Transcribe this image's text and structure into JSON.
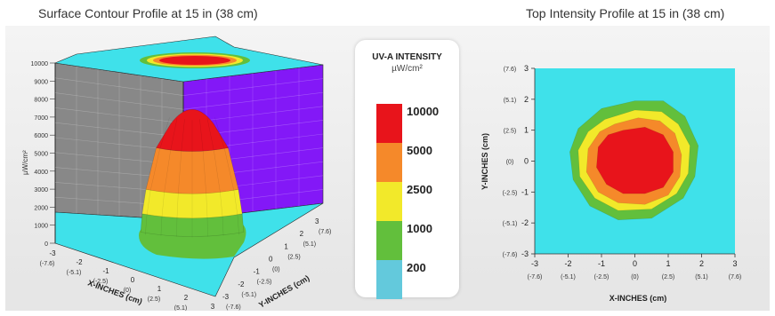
{
  "titles": {
    "surface": "Surface Contour Profile at 15 in (38 cm)",
    "top": "Top Intensity Profile at 15 in (38 cm)"
  },
  "legend": {
    "title": "UV-A INTENSITY",
    "unit": "µW/cm²",
    "levels": [
      {
        "label": "10000",
        "color": "#e8141b"
      },
      {
        "label": "5000",
        "color": "#f5892a"
      },
      {
        "label": "2500",
        "color": "#f2e92a"
      },
      {
        "label": "1000",
        "color": "#62bf3c"
      },
      {
        "label": "200",
        "color": "#63c9dc"
      }
    ]
  },
  "colors": {
    "background": "#3fe1ea",
    "wall_left": "#888888",
    "wall_right": "#8318f7",
    "level_10000": "#e8141b",
    "level_5000": "#f5892a",
    "level_2500": "#f2e92a",
    "level_1000": "#62bf3c"
  },
  "chart_data": [
    {
      "type": "surface",
      "title": "Surface Contour Profile at 15 in (38 cm)",
      "xlabel": "X-INCHES (cm)",
      "ylabel": "Y-INCHES (cm)",
      "zlabel": "µW/cm²",
      "z_ticks": [
        "0",
        "1000",
        "2000",
        "3000",
        "4000",
        "5000",
        "6000",
        "7000",
        "8000",
        "9000",
        "10000"
      ],
      "x_ticks": [
        {
          "in": "-3",
          "cm": "(-7.6)"
        },
        {
          "in": "-2",
          "cm": "(-5.1)"
        },
        {
          "in": "-1",
          "cm": "(-2.5)"
        },
        {
          "in": "0",
          "cm": "(0)"
        },
        {
          "in": "1",
          "cm": "(2.5)"
        },
        {
          "in": "2",
          "cm": "(5.1)"
        },
        {
          "in": "3",
          "cm": "(7.6)"
        }
      ],
      "y_ticks": [
        {
          "in": "-3",
          "cm": "(-7.6)"
        },
        {
          "in": "-2",
          "cm": "(-5.1)"
        },
        {
          "in": "-1",
          "cm": "(-2.5)"
        },
        {
          "in": "0",
          "cm": "(0)"
        },
        {
          "in": "1",
          "cm": "(2.5)"
        },
        {
          "in": "2",
          "cm": "(5.1)"
        },
        {
          "in": "3",
          "cm": "(7.6)"
        }
      ],
      "zlim": [
        0,
        10000
      ],
      "bands": [
        {
          "level": 10000,
          "z_base": 7300
        },
        {
          "level": 5000,
          "z_base": 3900
        },
        {
          "level": 2500,
          "z_base": 1900
        },
        {
          "level": 1000,
          "z_base": 400
        }
      ]
    },
    {
      "type": "contour",
      "title": "Top Intensity Profile at 15 in (38 cm)",
      "xlabel": "X-INCHES (cm)",
      "ylabel": "Y-INCHES (cm)",
      "xlim": [
        -3,
        3
      ],
      "ylim": [
        -3,
        3
      ],
      "x_ticks": [
        {
          "in": "-3",
          "cm": "(-7.6)"
        },
        {
          "in": "-2",
          "cm": "(-5.1)"
        },
        {
          "in": "-1",
          "cm": "(-2.5)"
        },
        {
          "in": "0",
          "cm": "(0)"
        },
        {
          "in": "1",
          "cm": "(2.5)"
        },
        {
          "in": "2",
          "cm": "(5.1)"
        },
        {
          "in": "3",
          "cm": "(7.6)"
        }
      ],
      "y_ticks": [
        {
          "in": "-3",
          "cm": "(-7.6)"
        },
        {
          "in": "-2",
          "cm": "(-5.1)"
        },
        {
          "in": "-1",
          "cm": "(-2.5)"
        },
        {
          "in": "0",
          "cm": "(0)"
        },
        {
          "in": "1",
          "cm": "(2.5)"
        },
        {
          "in": "2",
          "cm": "(5.1)"
        },
        {
          "in": "3",
          "cm": "(7.6)"
        }
      ],
      "contours": [
        {
          "level": 1000,
          "points": [
            [
              -1.0,
              1.7
            ],
            [
              0.0,
              1.95
            ],
            [
              0.85,
              1.95
            ],
            [
              1.5,
              1.45
            ],
            [
              1.9,
              0.5
            ],
            [
              1.8,
              -0.5
            ],
            [
              1.45,
              -1.2
            ],
            [
              0.5,
              -1.85
            ],
            [
              -0.5,
              -1.9
            ],
            [
              -1.35,
              -1.45
            ],
            [
              -1.85,
              -0.6
            ],
            [
              -1.95,
              0.3
            ],
            [
              -1.7,
              1.05
            ]
          ]
        },
        {
          "level": 2500,
          "points": [
            [
              -0.9,
              1.35
            ],
            [
              0.0,
              1.65
            ],
            [
              0.8,
              1.6
            ],
            [
              1.3,
              1.2
            ],
            [
              1.65,
              0.5
            ],
            [
              1.6,
              -0.4
            ],
            [
              1.25,
              -1.05
            ],
            [
              0.5,
              -1.55
            ],
            [
              -0.5,
              -1.6
            ],
            [
              -1.2,
              -1.2
            ],
            [
              -1.65,
              -0.5
            ],
            [
              -1.7,
              0.35
            ],
            [
              -1.4,
              0.95
            ]
          ]
        },
        {
          "level": 5000,
          "points": [
            [
              -0.6,
              1.2
            ],
            [
              0.1,
              1.4
            ],
            [
              0.75,
              1.3
            ],
            [
              1.2,
              0.9
            ],
            [
              1.4,
              0.2
            ],
            [
              1.35,
              -0.5
            ],
            [
              1.0,
              -1.1
            ],
            [
              0.3,
              -1.4
            ],
            [
              -0.5,
              -1.35
            ],
            [
              -1.1,
              -1.0
            ],
            [
              -1.45,
              -0.35
            ],
            [
              -1.4,
              0.4
            ],
            [
              -1.05,
              0.95
            ]
          ]
        },
        {
          "level": 10000,
          "points": [
            [
              -0.35,
              1.0
            ],
            [
              0.3,
              1.1
            ],
            [
              0.85,
              0.85
            ],
            [
              1.15,
              0.3
            ],
            [
              1.15,
              -0.35
            ],
            [
              0.85,
              -0.85
            ],
            [
              0.3,
              -1.05
            ],
            [
              -0.35,
              -1.05
            ],
            [
              -0.85,
              -0.75
            ],
            [
              -1.15,
              -0.2
            ],
            [
              -1.1,
              0.45
            ],
            [
              -0.8,
              0.85
            ]
          ]
        }
      ]
    }
  ]
}
